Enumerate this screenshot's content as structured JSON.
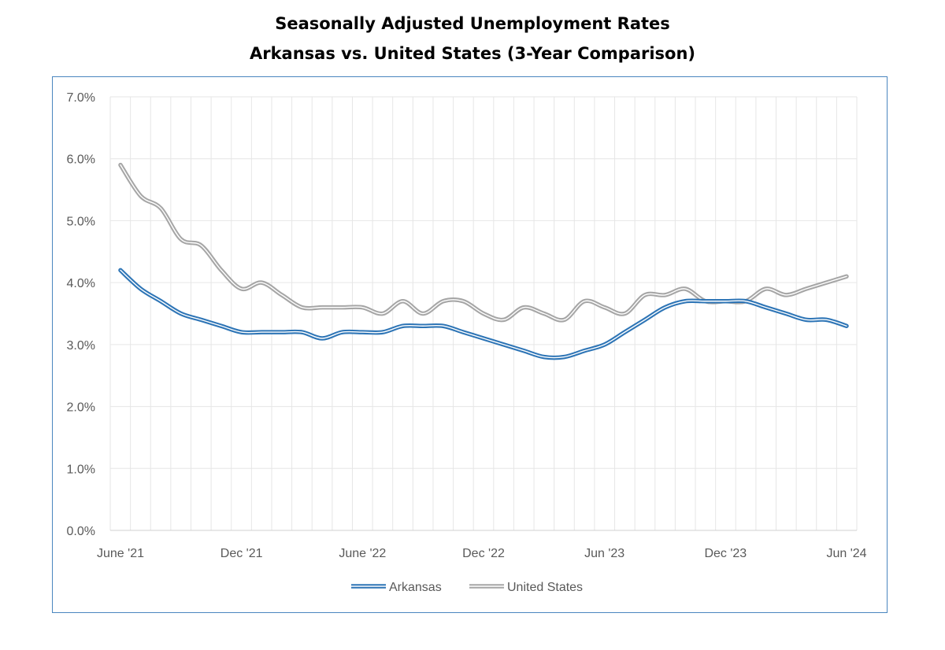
{
  "chart_data": {
    "type": "line",
    "title": "Seasonally Adjusted Unemployment Rates",
    "subtitle": "Arkansas vs. United States (3-Year Comparison)",
    "xlabel": "",
    "ylabel": "",
    "ylim": [
      0,
      7
    ],
    "y_ticks": [
      "0.0%",
      "1.0%",
      "2.0%",
      "3.0%",
      "4.0%",
      "5.0%",
      "6.0%",
      "7.0%"
    ],
    "x": [
      "Jun 2021",
      "Jul 2021",
      "Aug 2021",
      "Sep 2021",
      "Oct 2021",
      "Nov 2021",
      "Dec 2021",
      "Jan 2022",
      "Feb 2022",
      "Mar 2022",
      "Apr 2022",
      "May 2022",
      "Jun 2022",
      "Jul 2022",
      "Aug 2022",
      "Sep 2022",
      "Oct 2022",
      "Nov 2022",
      "Dec 2022",
      "Jan 2023",
      "Feb 2023",
      "Mar 2023",
      "Apr 2023",
      "May 2023",
      "Jun 2023",
      "Jul 2023",
      "Aug 2023",
      "Sep 2023",
      "Oct 2023",
      "Nov 2023",
      "Dec 2023",
      "Jan 2024",
      "Feb 2024",
      "Mar 2024",
      "Apr 2024",
      "May 2024",
      "Jun 2024"
    ],
    "x_tick_labels": [
      {
        "index": 0,
        "label": "June '21"
      },
      {
        "index": 6,
        "label": "Dec '21"
      },
      {
        "index": 12,
        "label": "June '22"
      },
      {
        "index": 18,
        "label": "Dec '22"
      },
      {
        "index": 24,
        "label": "Jun '23"
      },
      {
        "index": 30,
        "label": "Dec '23"
      },
      {
        "index": 36,
        "label": "Jun '24"
      }
    ],
    "grid": true,
    "legend_position": "bottom",
    "series": [
      {
        "name": "Arkansas",
        "color": "#2e75b6",
        "values": [
          4.2,
          3.9,
          3.7,
          3.5,
          3.4,
          3.3,
          3.2,
          3.2,
          3.2,
          3.2,
          3.1,
          3.2,
          3.2,
          3.2,
          3.3,
          3.3,
          3.3,
          3.2,
          3.1,
          3.0,
          2.9,
          2.8,
          2.8,
          2.9,
          3.0,
          3.2,
          3.4,
          3.6,
          3.7,
          3.7,
          3.7,
          3.7,
          3.6,
          3.5,
          3.4,
          3.4,
          3.3
        ]
      },
      {
        "name": "United States",
        "color": "#a6a6a6",
        "values": [
          5.9,
          5.4,
          5.2,
          4.7,
          4.6,
          4.2,
          3.9,
          4.0,
          3.8,
          3.6,
          3.6,
          3.6,
          3.6,
          3.5,
          3.7,
          3.5,
          3.7,
          3.7,
          3.5,
          3.4,
          3.6,
          3.5,
          3.4,
          3.7,
          3.6,
          3.5,
          3.8,
          3.8,
          3.9,
          3.7,
          3.7,
          3.7,
          3.9,
          3.8,
          3.9,
          4.0,
          4.1
        ]
      }
    ]
  }
}
